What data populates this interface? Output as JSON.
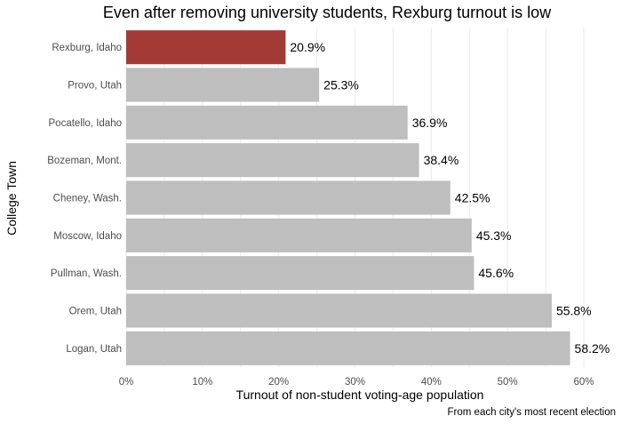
{
  "chart_data": {
    "type": "bar",
    "orientation": "horizontal",
    "title": "Even after removing university students, Rexburg turnout is low",
    "xlabel": "Turnout of non-student voting-age population",
    "ylabel": "College Town",
    "caption": "From each city's most recent election",
    "categories": [
      "Rexburg, Idaho",
      "Provo, Utah",
      "Pocatello, Idaho",
      "Bozeman, Mont.",
      "Cheney, Wash.",
      "Moscow, Idaho",
      "Pullman, Wash.",
      "Orem, Utah",
      "Logan, Utah"
    ],
    "values": [
      20.9,
      25.3,
      36.9,
      38.4,
      42.5,
      45.3,
      45.6,
      55.8,
      58.2
    ],
    "value_labels": [
      "20.9%",
      "25.3%",
      "36.9%",
      "38.4%",
      "42.5%",
      "45.3%",
      "45.6%",
      "55.8%",
      "58.2%"
    ],
    "xlim": [
      0,
      60
    ],
    "xticks": [
      0,
      10,
      20,
      30,
      40,
      50,
      60
    ],
    "xtick_labels": [
      "0%",
      "10%",
      "20%",
      "30%",
      "40%",
      "50%",
      "60%"
    ],
    "grid": true,
    "colors": {
      "highlight": "#a33a35",
      "default": "#bebebe",
      "grid": "#ebebeb"
    },
    "highlight_index": 0
  }
}
